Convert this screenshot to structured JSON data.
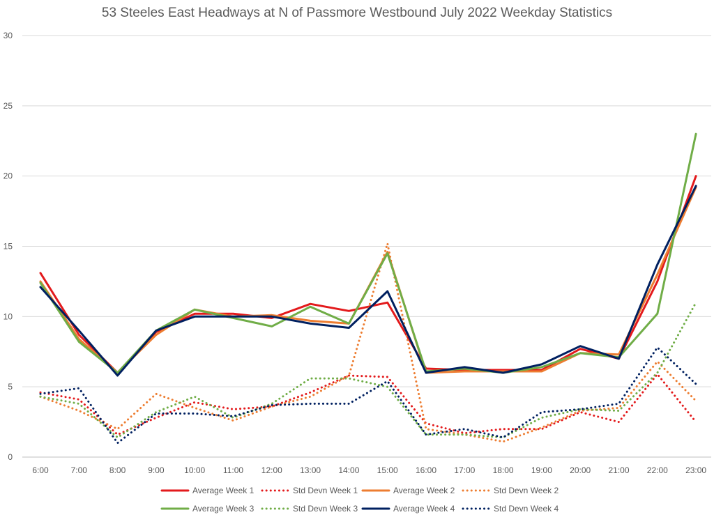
{
  "chart_data": {
    "type": "line",
    "title": "53 Steeles East Headways at N of Passmore Westbound July 2022 Weekday Statistics",
    "xlabel": "",
    "ylabel": "",
    "ylim": [
      0,
      30
    ],
    "yticks": [
      0,
      5,
      10,
      15,
      20,
      25,
      30
    ],
    "grid": true,
    "legend_position": "bottom",
    "categories": [
      "6:00",
      "7:00",
      "8:00",
      "9:00",
      "10:00",
      "11:00",
      "12:00",
      "13:00",
      "14:00",
      "15:00",
      "16:00",
      "17:00",
      "18:00",
      "19:00",
      "20:00",
      "21:00",
      "22:00",
      "23:00"
    ],
    "series": [
      {
        "name": "Average Week 1",
        "color": "#e31a1c",
        "style": "solid",
        "values": [
          13.1,
          8.7,
          6.0,
          8.9,
          10.2,
          10.2,
          9.9,
          10.9,
          10.4,
          11.0,
          6.3,
          6.2,
          6.2,
          6.2,
          7.7,
          7.0,
          12.5,
          20.0
        ]
      },
      {
        "name": "Std Devn Week 1",
        "color": "#e31a1c",
        "style": "dotted",
        "values": [
          4.6,
          4.1,
          1.6,
          2.8,
          3.9,
          3.4,
          3.6,
          4.6,
          5.8,
          5.7,
          2.4,
          1.7,
          2.0,
          2.0,
          3.2,
          2.5,
          5.9,
          2.5
        ]
      },
      {
        "name": "Average Week 2",
        "color": "#ed7d31",
        "style": "solid",
        "values": [
          12.5,
          8.4,
          6.0,
          8.7,
          10.5,
          10.0,
          10.1,
          9.7,
          9.5,
          14.6,
          6.0,
          6.1,
          6.1,
          6.1,
          7.4,
          7.3,
          13.0,
          19.2
        ]
      },
      {
        "name": "Std Devn Week 2",
        "color": "#ed7d31",
        "style": "dotted",
        "values": [
          4.3,
          3.3,
          2.0,
          4.5,
          3.5,
          2.6,
          3.6,
          4.3,
          5.8,
          15.2,
          2.0,
          1.6,
          1.1,
          2.1,
          3.3,
          3.5,
          6.8,
          4.0
        ]
      },
      {
        "name": "Average Week 3",
        "color": "#70ad47",
        "style": "solid",
        "values": [
          12.4,
          8.2,
          6.0,
          9.0,
          10.5,
          9.9,
          9.3,
          10.7,
          9.5,
          14.5,
          6.1,
          6.3,
          6.0,
          6.4,
          7.4,
          7.1,
          10.2,
          23.0
        ]
      },
      {
        "name": "Std Devn Week 3",
        "color": "#70ad47",
        "style": "dotted",
        "values": [
          4.3,
          3.8,
          1.4,
          3.2,
          4.3,
          2.8,
          3.8,
          5.6,
          5.6,
          5.0,
          1.6,
          1.6,
          1.4,
          2.8,
          3.4,
          3.3,
          6.0,
          11.0
        ]
      },
      {
        "name": "Average Week 4",
        "color": "#002060",
        "style": "solid",
        "values": [
          12.1,
          9.0,
          5.8,
          9.0,
          10.0,
          10.0,
          10.0,
          9.5,
          9.2,
          11.8,
          6.0,
          6.4,
          6.0,
          6.6,
          7.9,
          7.0,
          13.7,
          19.3
        ]
      },
      {
        "name": "Std Devn Week 4",
        "color": "#002060",
        "style": "dotted",
        "values": [
          4.5,
          4.9,
          1.0,
          3.1,
          3.1,
          2.9,
          3.7,
          3.8,
          3.8,
          5.4,
          1.6,
          2.0,
          1.4,
          3.2,
          3.4,
          3.8,
          7.8,
          5.2
        ]
      }
    ]
  }
}
